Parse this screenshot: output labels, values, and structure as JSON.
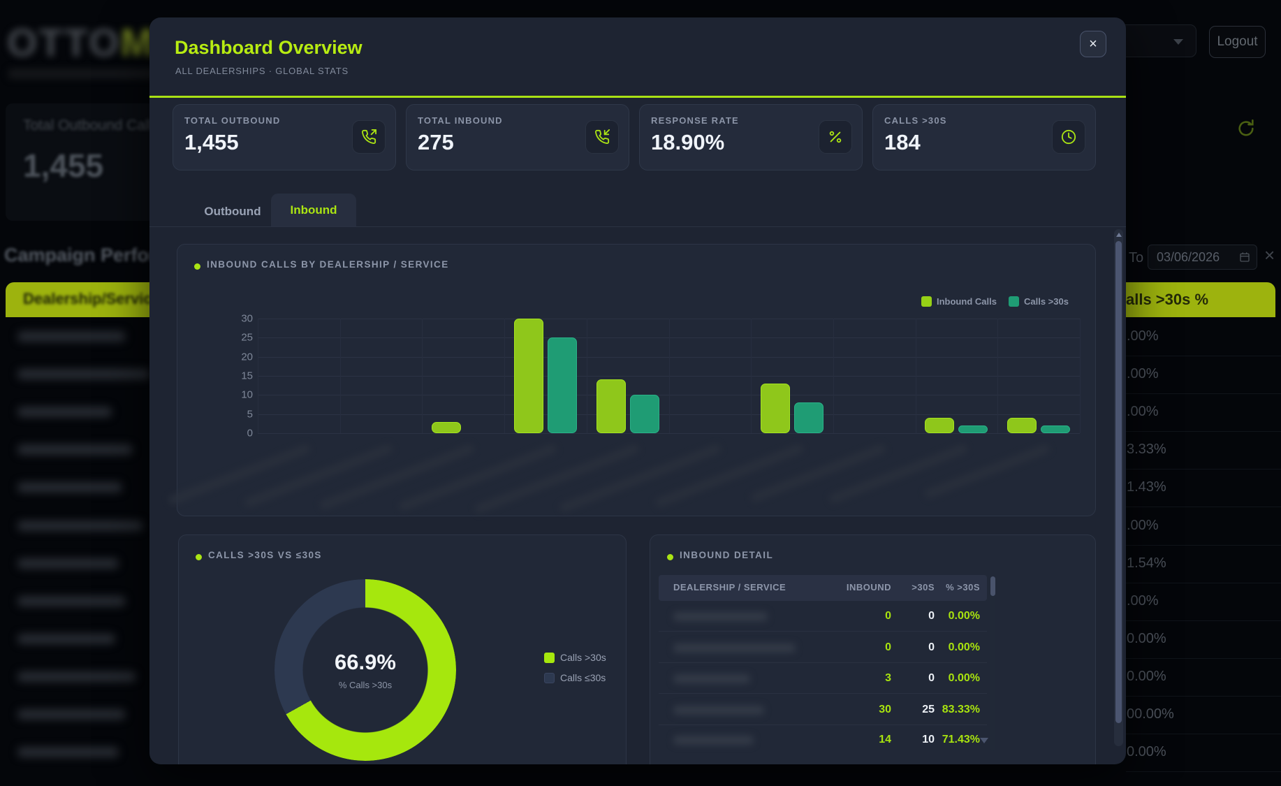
{
  "background": {
    "logo_part1": "OTTO",
    "logo_part2": "MAT",
    "stat_card": {
      "label": "Total Outbound Calls",
      "value": "1,455"
    },
    "heading": "Campaign Performance",
    "table_header_left": "Dealership/Service",
    "table_header_right": "alls >30s %",
    "right_rows": [
      ".00%",
      ".00%",
      ".00%",
      "3.33%",
      "1.43%",
      ".00%",
      "1.54%",
      ".00%",
      "0.00%",
      "0.00%",
      "00.00%",
      "0.00%"
    ],
    "filter": {
      "to_label": "To",
      "date_value": "03/06/2026",
      "clear_icon": "×"
    },
    "logout_label": "Logout"
  },
  "modal": {
    "title": "Dashboard Overview",
    "subtitle": "ALL DEALERSHIPS · GLOBAL STATS",
    "close_icon": "×",
    "stats": [
      {
        "label": "TOTAL OUTBOUND",
        "value": "1,455",
        "icon": "phone-outgoing-icon"
      },
      {
        "label": "TOTAL INBOUND",
        "value": "275",
        "icon": "phone-incoming-icon"
      },
      {
        "label": "RESPONSE RATE",
        "value": "18.90%",
        "icon": "percent-icon"
      },
      {
        "label": "CALLS >30S",
        "value": "184",
        "icon": "clock-icon"
      }
    ],
    "tabs": {
      "outbound": "Outbound",
      "inbound": "Inbound"
    }
  },
  "chart_data": [
    {
      "type": "bar",
      "title": "INBOUND CALLS BY DEALERSHIP / SERVICE",
      "categories": [
        "",
        "",
        "",
        "",
        "",
        "",
        "",
        "",
        "",
        ""
      ],
      "categories_note": "x-axis dealership labels are privacy-blurred in the screenshot",
      "series": [
        {
          "name": "Inbound Calls",
          "color": "#8fc71b",
          "edge": "#a5e51f",
          "values": [
            0,
            0,
            3,
            30,
            14,
            0,
            13,
            0,
            4,
            4
          ]
        },
        {
          "name": "Calls >30s",
          "color": "#1f9c74",
          "edge": "#2ab388",
          "values": [
            0,
            0,
            0,
            25,
            10,
            0,
            8,
            0,
            2,
            2
          ]
        }
      ],
      "ylim": [
        0,
        30
      ],
      "yticks": [
        0,
        5,
        10,
        15,
        20,
        25,
        30
      ],
      "grid": true,
      "legend_position": "top-right"
    },
    {
      "type": "pie",
      "variant": "donut",
      "title": "CALLS >30S VS ≤30S",
      "center_value": "66.9%",
      "center_label": "% Calls >30s",
      "slices": [
        {
          "label": "Calls >30s",
          "value": 66.9,
          "color": "#a6e70d"
        },
        {
          "label": "Calls ≤30s",
          "value": 33.1,
          "color": "#2d3950"
        }
      ],
      "legend_position": "right"
    },
    {
      "type": "table",
      "title": "INBOUND DETAIL",
      "columns": [
        "DEALERSHIP / SERVICE",
        "INBOUND",
        ">30S",
        "% >30S"
      ],
      "rows": [
        {
          "dealership": "(blurred)",
          "inbound": "0",
          "over30": "0",
          "pct": "0.00%"
        },
        {
          "dealership": "(blurred)",
          "inbound": "0",
          "over30": "0",
          "pct": "0.00%"
        },
        {
          "dealership": "(blurred)",
          "inbound": "3",
          "over30": "0",
          "pct": "0.00%"
        },
        {
          "dealership": "(blurred)",
          "inbound": "30",
          "over30": "25",
          "pct": "83.33%"
        },
        {
          "dealership": "(blurred)",
          "inbound": "14",
          "over30": "10",
          "pct": "71.43%"
        }
      ]
    }
  ]
}
